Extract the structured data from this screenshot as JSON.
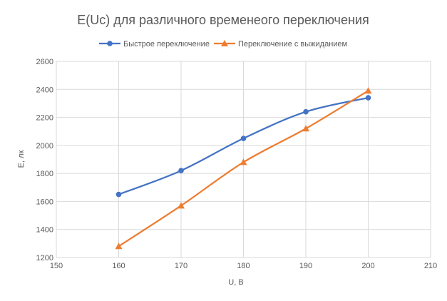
{
  "chart_data": {
    "type": "line",
    "title": "E(Uc) для различного временеого переключения",
    "xlabel": "U, В",
    "ylabel": "E, лк",
    "xlim": [
      150,
      210
    ],
    "ylim": [
      1200,
      2600
    ],
    "xticks": [
      150,
      160,
      170,
      180,
      190,
      200,
      210
    ],
    "yticks": [
      1200,
      1400,
      1600,
      1800,
      2000,
      2200,
      2400,
      2600
    ],
    "grid": true,
    "legend": "top",
    "x": [
      160,
      170,
      180,
      190,
      200
    ],
    "series": [
      {
        "name": "Быстрое переключение",
        "color": "#4472C4",
        "marker": "circle",
        "values": [
          1650,
          1820,
          2050,
          2240,
          2340
        ]
      },
      {
        "name": "Переключение с выжиданием",
        "color": "#ED7D31",
        "marker": "triangle",
        "values": [
          1280,
          1570,
          1880,
          2120,
          2390
        ]
      }
    ]
  }
}
